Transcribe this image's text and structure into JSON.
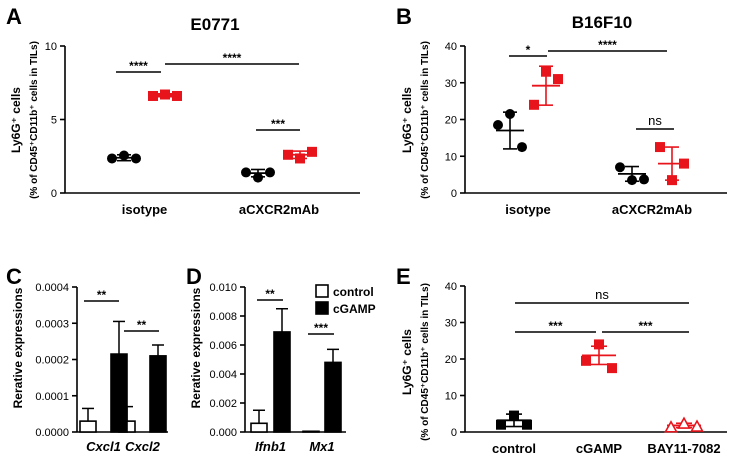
{
  "panels": [
    {
      "letter": "A",
      "title": "E0771",
      "type": "scatter",
      "ylabel1": "Ly6G⁺ cells",
      "ylabel2": "(% of CD45⁺CD11b⁺ cells in TILs)",
      "ylim": [
        0,
        10
      ],
      "yticks": [
        "0",
        "5",
        "10"
      ],
      "categories": [
        "isotype",
        "aCXCR2mAb"
      ],
      "series": [
        {
          "name": "control",
          "color": "#000000",
          "marker": "circle",
          "groups": [
            {
              "mean": 2.4,
              "sd": 0.2,
              "points": [
                2.35,
                2.55,
                2.35
              ]
            },
            {
              "mean": 1.35,
              "sd": 0.25,
              "points": [
                1.4,
                1.05,
                1.4
              ]
            }
          ]
        },
        {
          "name": "cGAMP",
          "color": "#e8141c",
          "marker": "square",
          "groups": [
            {
              "mean": 6.65,
              "sd": 0.1,
              "points": [
                6.6,
                6.7,
                6.6
              ]
            },
            {
              "mean": 2.6,
              "sd": 0.25,
              "points": [
                2.6,
                2.35,
                2.8
              ]
            }
          ]
        }
      ],
      "sig": [
        "****",
        "****",
        "***"
      ]
    },
    {
      "letter": "B",
      "title": "B16F10",
      "type": "scatter",
      "ylabel1": "Ly6G⁺ cells",
      "ylabel2": "(% of CD45⁺CD11b⁺ cells in TILs)",
      "ylim": [
        0,
        40
      ],
      "yticks": [
        "0",
        "10",
        "20",
        "30",
        "40"
      ],
      "categories": [
        "isotype",
        "aCXCR2mAb"
      ],
      "series": [
        {
          "name": "control",
          "color": "#000000",
          "marker": "circle",
          "groups": [
            {
              "mean": 17.0,
              "sd": 5.0,
              "points": [
                18.5,
                21.5,
                12.5
              ]
            },
            {
              "mean": 5.2,
              "sd": 2.0,
              "points": [
                7.0,
                3.5,
                3.7
              ]
            }
          ]
        },
        {
          "name": "cGAMP",
          "color": "#e8141c",
          "marker": "square",
          "groups": [
            {
              "mean": 29.2,
              "sd": 5.3,
              "points": [
                24.0,
                33.0,
                31.0
              ]
            },
            {
              "mean": 8.0,
              "sd": 4.5,
              "points": [
                12.5,
                3.5,
                8.0
              ]
            }
          ]
        }
      ],
      "sig": [
        "*",
        "****",
        "ns"
      ]
    },
    {
      "letter": "C",
      "type": "bar",
      "ylabel": "Rerative expressions",
      "ylim": [
        0,
        0.0004
      ],
      "yticks": [
        "0.0000",
        "0.0001",
        "0.0002",
        "0.0003",
        "0.0004"
      ],
      "categories": [
        "Cxcl1",
        "Cxcl2"
      ],
      "series": [
        {
          "name": "control",
          "values": [
            3e-05,
            3e-05
          ],
          "errors": [
            3.5e-05,
            4e-05
          ]
        },
        {
          "name": "cGAMP",
          "values": [
            0.000215,
            0.00021
          ],
          "errors": [
            9e-05,
            3e-05
          ]
        }
      ],
      "sig": [
        "**",
        "**"
      ]
    },
    {
      "letter": "D",
      "type": "bar",
      "ylabel": "Rerative expressions",
      "ylim": [
        0,
        0.01
      ],
      "yticks": [
        "0.000",
        "0.002",
        "0.004",
        "0.006",
        "0.008",
        "0.010"
      ],
      "categories": [
        "Ifnb1",
        "Mx1"
      ],
      "series": [
        {
          "name": "control",
          "values": [
            0.0006,
            5e-05
          ],
          "errors": [
            0.0009,
            0.0
          ]
        },
        {
          "name": "cGAMP",
          "values": [
            0.0069,
            0.0048
          ],
          "errors": [
            0.0016,
            0.0009
          ]
        }
      ],
      "sig": [
        "**",
        "***"
      ],
      "legend": [
        "control",
        "cGAMP"
      ]
    },
    {
      "letter": "E",
      "type": "scatter",
      "ylabel1": "Ly6G⁺ cells",
      "ylabel2": "(% of CD45⁺CD11b⁺ cells in TILs)",
      "ylim": [
        0,
        40
      ],
      "yticks": [
        "0",
        "10",
        "20",
        "30",
        "40"
      ],
      "categories": [
        "control",
        "cGAMP",
        "BAY11-7082"
      ],
      "groups": [
        {
          "color": "#000000",
          "marker": "square",
          "mean": 3.2,
          "sd": 1.7,
          "points": [
            2.0,
            4.5,
            2.0
          ]
        },
        {
          "color": "#e8141c",
          "marker": "square",
          "mean": 21.0,
          "sd": 2.5,
          "points": [
            19.5,
            24.0,
            17.5
          ]
        },
        {
          "color": "#e8141c",
          "marker": "triangle-open",
          "mean": 1.8,
          "sd": 0.6,
          "points": [
            1.3,
            2.3,
            1.5
          ]
        }
      ],
      "sig": [
        "ns",
        "***",
        "***"
      ]
    }
  ]
}
